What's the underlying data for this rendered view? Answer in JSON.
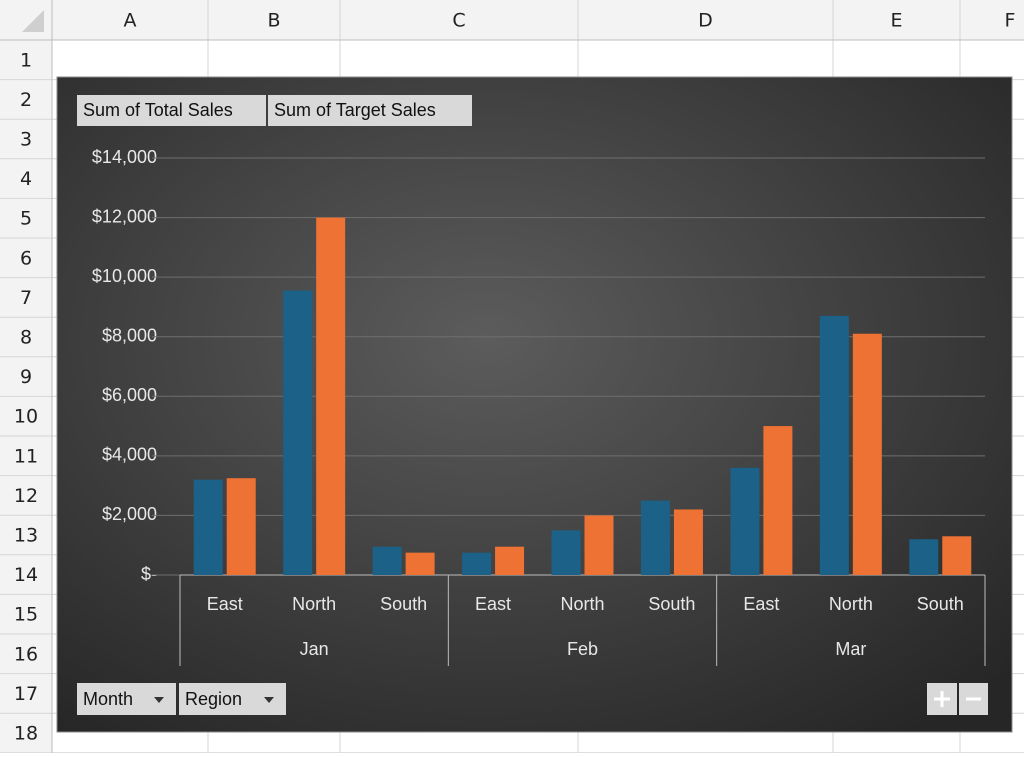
{
  "spreadsheet": {
    "columns": [
      "A",
      "B",
      "C",
      "D",
      "E",
      "F"
    ],
    "rows": [
      "1",
      "2",
      "3",
      "4",
      "5",
      "6",
      "7",
      "8",
      "9",
      "10",
      "11",
      "12",
      "13",
      "14",
      "15",
      "16",
      "17",
      "18"
    ]
  },
  "chart_data": {
    "type": "bar",
    "categories": [
      "East",
      "North",
      "South",
      "East",
      "North",
      "South",
      "East",
      "North",
      "South"
    ],
    "category_groups": [
      {
        "label": "Jan",
        "size": 3
      },
      {
        "label": "Feb",
        "size": 3
      },
      {
        "label": "Mar",
        "size": 3
      }
    ],
    "series": [
      {
        "name": "Sum of Total Sales",
        "color": "#1b6188",
        "values": [
          3200,
          9550,
          950,
          750,
          1500,
          2500,
          3600,
          8700,
          1200
        ]
      },
      {
        "name": "Sum of Target Sales",
        "color": "#ee7233",
        "values": [
          3250,
          12000,
          750,
          950,
          2000,
          2200,
          5000,
          8100,
          1300
        ]
      }
    ],
    "ylim": [
      0,
      14000
    ],
    "yticks": [
      {
        "value": 0,
        "label": "$-"
      },
      {
        "value": 2000,
        "label": "$2,000"
      },
      {
        "value": 4000,
        "label": "$4,000"
      },
      {
        "value": 6000,
        "label": "$6,000"
      },
      {
        "value": 8000,
        "label": "$8,000"
      },
      {
        "value": 10000,
        "label": "$10,000"
      },
      {
        "value": 12000,
        "label": "$12,000"
      },
      {
        "value": 14000,
        "label": "$14,000"
      }
    ],
    "grid": true
  },
  "field_buttons": [
    "Month",
    "Region"
  ]
}
